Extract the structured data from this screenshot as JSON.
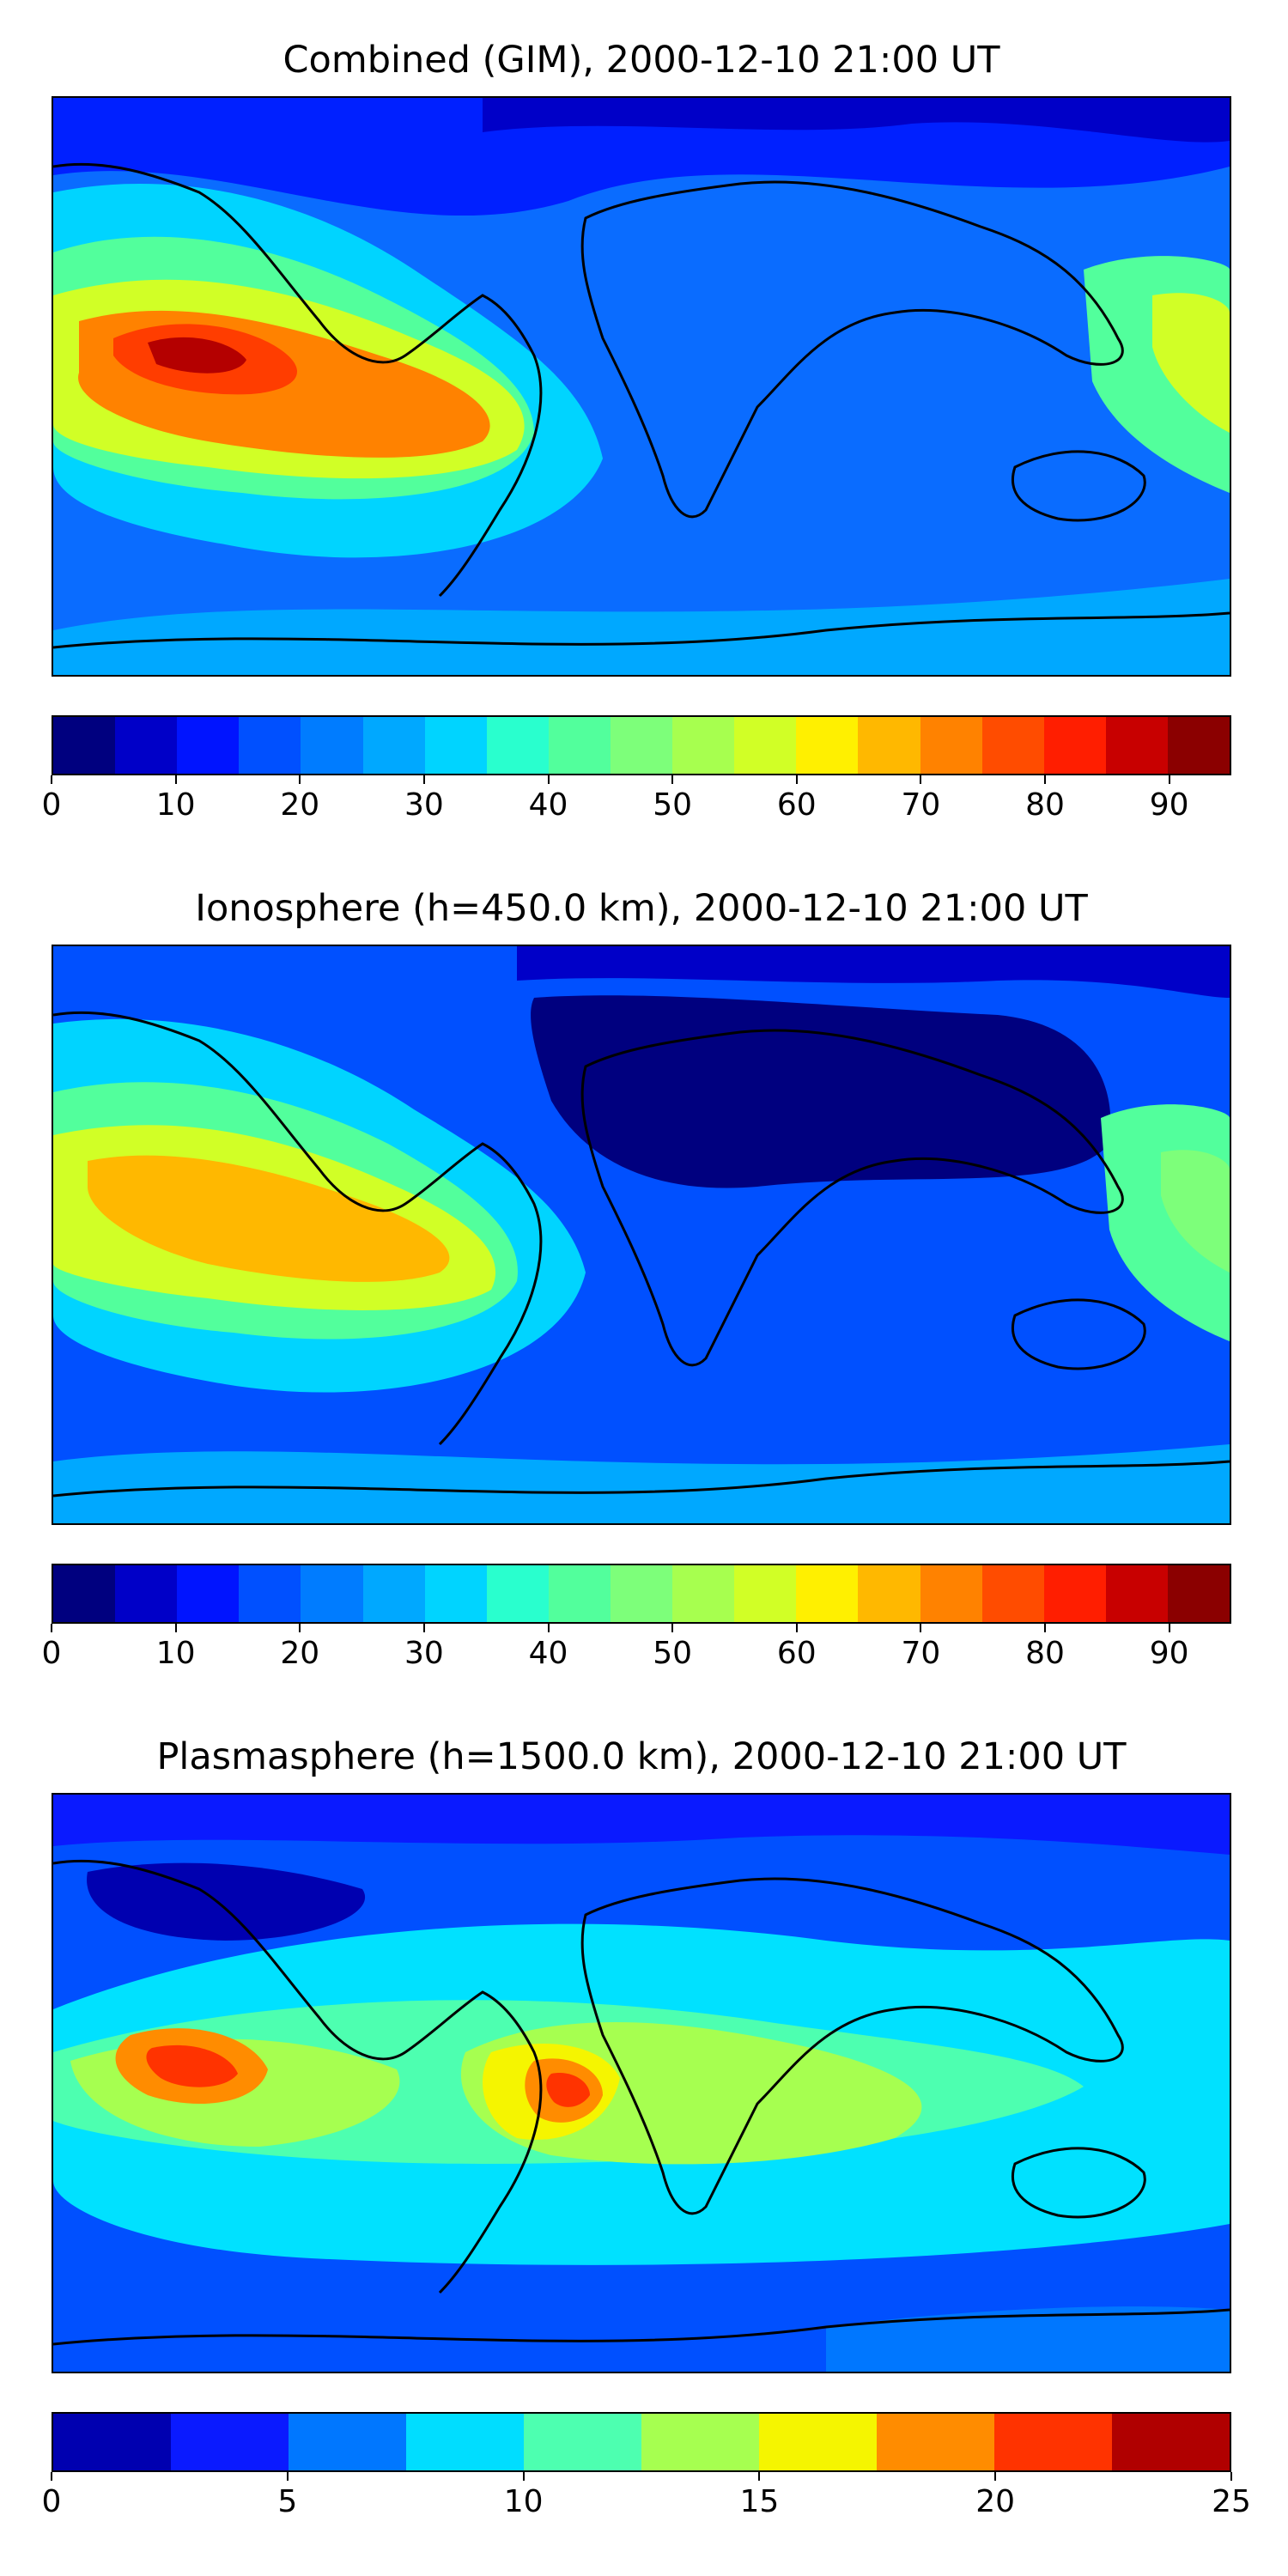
{
  "figure": {
    "panels": [
      {
        "id": "combined",
        "title": "Combined (GIM), 2000-12-10 21:00 UT",
        "background": "#0a4cff",
        "colorbar": {
          "colors": [
            "#00007f",
            "#0000c8",
            "#0014ff",
            "#0050ff",
            "#007cff",
            "#00a8ff",
            "#00d4ff",
            "#29ffce",
            "#52ff9c",
            "#7dff7a",
            "#a7ff4f",
            "#d1ff26",
            "#fff000",
            "#ffb800",
            "#ff8200",
            "#ff4c00",
            "#ff1e00",
            "#c80000",
            "#8b0000"
          ],
          "tick_labels": [
            "0",
            "10",
            "20",
            "30",
            "40",
            "50",
            "60",
            "70",
            "80",
            "90"
          ],
          "tick_values": [
            0,
            10,
            20,
            30,
            40,
            50,
            60,
            70,
            80,
            90
          ],
          "min": 0,
          "max": 95
        },
        "contours": [
          {
            "name": "north-band",
            "color": "#0022ff"
          },
          {
            "name": "pacific-high",
            "color": "#ffe600"
          },
          {
            "name": "pacific-core",
            "color": "#ff3d00"
          },
          {
            "name": "pacific-peak",
            "color": "#b40000"
          },
          {
            "name": "south-america-high",
            "color": "#ff7a00"
          },
          {
            "name": "indonesia-high",
            "color": "#a8ff4f"
          }
        ]
      },
      {
        "id": "ionosphere",
        "title": "Ionosphere  (h=450.0 km), 2000-12-10 21:00 UT",
        "background": "#0a4cff",
        "colorbar": {
          "colors": [
            "#00007f",
            "#0000c8",
            "#0014ff",
            "#0050ff",
            "#007cff",
            "#00a8ff",
            "#00d4ff",
            "#29ffce",
            "#52ff9c",
            "#7dff7a",
            "#a7ff4f",
            "#d1ff26",
            "#fff000",
            "#ffb800",
            "#ff8200",
            "#ff4c00",
            "#ff1e00",
            "#c80000",
            "#8b0000"
          ],
          "tick_labels": [
            "0",
            "10",
            "20",
            "30",
            "40",
            "50",
            "60",
            "70",
            "80",
            "90"
          ],
          "tick_values": [
            0,
            10,
            20,
            30,
            40,
            50,
            60,
            70,
            80,
            90
          ],
          "min": 0,
          "max": 95
        },
        "contours": [
          {
            "name": "eurasia-low",
            "color": "#00007f"
          },
          {
            "name": "pacific-high",
            "color": "#d1ff26"
          },
          {
            "name": "pacific-core",
            "color": "#ffb800"
          },
          {
            "name": "indonesia-high",
            "color": "#7dff7a"
          }
        ]
      },
      {
        "id": "plasmasphere",
        "title": "Plasmasphere (h=1500.0 km), 2000-12-10 21:00 UT",
        "background": "#0050ff",
        "colorbar": {
          "colors": [
            "#0000b0",
            "#0a1aff",
            "#0077ff",
            "#00ddff",
            "#4dffb0",
            "#a6ff50",
            "#f5f500",
            "#ff8c00",
            "#ff3300",
            "#b00000"
          ],
          "tick_labels": [
            "0",
            "5",
            "10",
            "15",
            "20",
            "25"
          ],
          "tick_values": [
            0,
            5,
            10,
            15,
            20,
            25
          ],
          "min": 0,
          "max": 25
        },
        "contours": [
          {
            "name": "equatorial-band",
            "color": "#00e1ff"
          },
          {
            "name": "pacific-high",
            "color": "#ff8c00"
          },
          {
            "name": "pacific-core",
            "color": "#ff3300"
          },
          {
            "name": "atlantic-high",
            "color": "#f5f500"
          },
          {
            "name": "atlantic-core",
            "color": "#ff3300"
          }
        ]
      }
    ]
  }
}
